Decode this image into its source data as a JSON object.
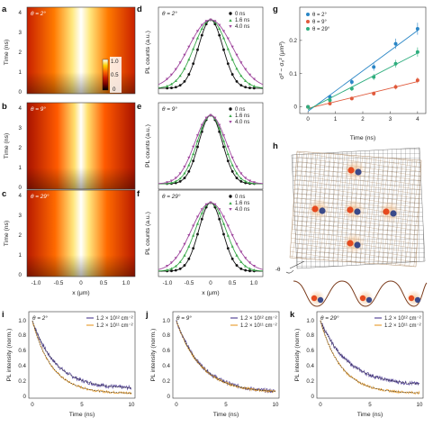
{
  "panel_letters": {
    "a": "a",
    "b": "b",
    "c": "c",
    "d": "d",
    "e": "e",
    "f": "f",
    "g": "g",
    "h": "h",
    "i": "i",
    "j": "j",
    "k": "k"
  },
  "heatmaps": {
    "theta_labels": [
      "θ = 2°",
      "θ = 9°",
      "θ = 29°"
    ],
    "ylabel": "Time (ns)",
    "xlabel": "x (μm)",
    "yticks": [
      "0",
      "1",
      "2",
      "3",
      "4"
    ],
    "xticks": [
      "-1.0",
      "-0.5",
      "0",
      "0.5",
      "1.0"
    ],
    "colorbar_ticks": [
      "1.0",
      "0.5",
      "0"
    ],
    "colormap": [
      "#000000",
      "#7a0000",
      "#c81e00",
      "#ff6a00",
      "#ffd000",
      "#ffffc0",
      "#ffffff"
    ]
  },
  "profiles": {
    "theta_labels": [
      "θ = 2°",
      "θ = 9°",
      "θ = 29°"
    ],
    "ylabel": "PL counts (a.u.)",
    "xlabel": "x (μm)",
    "xticks": [
      "-1.0",
      "-0.5",
      "0",
      "0.5",
      "1.0"
    ],
    "legend": [
      "0 ns",
      "1.6 ns",
      "4.0 ns"
    ],
    "series_colors": [
      "#111111",
      "#3aa84a",
      "#a0489e"
    ]
  },
  "panel_g": {
    "ylabel": "σ² − σ₀² (μm²)",
    "xlabel": "Time (ns)",
    "legend": [
      "θ = 2°",
      "θ = 9°",
      "θ = 29°"
    ],
    "colors": [
      "#2a86c6",
      "#e05a3c",
      "#2fae7e"
    ]
  },
  "panel_h": {
    "angle_label": "-θ"
  },
  "decays": {
    "theta_labels": [
      "θ = 2°",
      "θ = 9°",
      "θ = 29°"
    ],
    "ylabel": "PL intensity (norm.)",
    "xlabel": "Time (ns)",
    "xticks": [
      "0",
      "5",
      "10"
    ],
    "yticks": [
      "0",
      "0.2",
      "0.4",
      "0.6",
      "0.8",
      "1.0"
    ],
    "legend_i": [
      "1.2 × 10¹² cm⁻²",
      "1.2 × 10¹¹ cm⁻²"
    ],
    "legend_j": [
      "1.2 × 10¹² cm⁻²",
      "1.2 × 10¹¹ cm⁻²"
    ],
    "legend_k": [
      "1.2 × 10¹² cm⁻²",
      "1.2 × 10¹¹ cm⁻²"
    ],
    "colors": [
      "#5a4a9a",
      "#e8a23a"
    ]
  },
  "chart_data": [
    {
      "type": "scatter",
      "panel": "g",
      "xlabel": "Time (ns)",
      "ylabel": "σ² − σ₀² (μm²)",
      "xlim": [
        -0.3,
        4.3
      ],
      "ylim": [
        -0.02,
        0.3
      ],
      "xticks": [
        0,
        1,
        2,
        3,
        4
      ],
      "yticks": [
        0,
        0.1,
        0.2
      ],
      "series": [
        {
          "name": "θ = 2°",
          "x": [
            0,
            0.8,
            1.6,
            2.4,
            3.2,
            4.0
          ],
          "y": [
            0.0,
            0.03,
            0.075,
            0.12,
            0.19,
            0.235
          ]
        },
        {
          "name": "θ = 9°",
          "x": [
            0,
            0.8,
            1.6,
            2.4,
            3.2,
            4.0
          ],
          "y": [
            0.0,
            0.01,
            0.025,
            0.04,
            0.06,
            0.08
          ]
        },
        {
          "name": "θ = 29°",
          "x": [
            0,
            0.8,
            1.6,
            2.4,
            3.2,
            4.0
          ],
          "y": [
            0.0,
            0.02,
            0.055,
            0.09,
            0.13,
            0.165
          ]
        }
      ]
    }
  ]
}
